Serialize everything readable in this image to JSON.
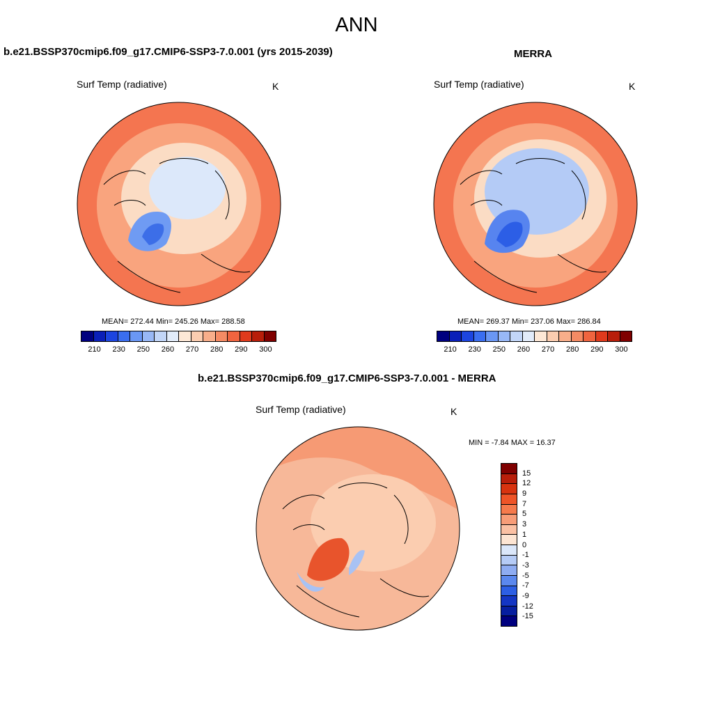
{
  "title": "ANN",
  "panels": {
    "model": {
      "title": "b.e21.BSSP370cmip6.f09_g17.CMIP6-SSP3-7.0.001 (yrs 2015-2039)",
      "variable": "Surf Temp (radiative)",
      "units": "K",
      "stats": "MEAN= 272.44  Min= 245.26  Max= 288.58"
    },
    "obs": {
      "title": "MERRA",
      "variable": "Surf Temp (radiative)",
      "units": "K",
      "stats": "MEAN= 269.37  Min= 237.06  Max= 286.84"
    },
    "diff": {
      "title": "b.e21.BSSP370cmip6.f09_g17.CMIP6-SSP3-7.0.001 - MERRA",
      "variable": "Surf Temp (radiative)",
      "units": "K",
      "stats": "MIN =  -7.84 MAX =  16.37"
    }
  },
  "colorbars": {
    "abs": {
      "labels": [
        "210",
        "230",
        "250",
        "260",
        "270",
        "280",
        "290",
        "300"
      ],
      "colors": [
        "#00007f",
        "#0a1fb8",
        "#1c45e0",
        "#3a6ef0",
        "#6a97f4",
        "#98b8f6",
        "#c2d6f8",
        "#e2ecfa",
        "#fde8d6",
        "#fbcdb0",
        "#f8ae8a",
        "#f58b64",
        "#f0643f",
        "#e03a1c",
        "#b81e0a",
        "#7f0000"
      ]
    },
    "diff": {
      "labels": [
        "15",
        "12",
        "9",
        "7",
        "5",
        "3",
        "1",
        "0",
        "-1",
        "-3",
        "-5",
        "-7",
        "-9",
        "-12",
        "-15"
      ],
      "colors": [
        "#7f0000",
        "#b81e0a",
        "#d8330f",
        "#ef5427",
        "#f67a4c",
        "#f89d78",
        "#fbc1a4",
        "#fde5d3",
        "#dbe7fa",
        "#b5cbf6",
        "#8eacf2",
        "#5b88ee",
        "#2d5fe4",
        "#1436c4",
        "#071fa0",
        "#00007f"
      ]
    }
  },
  "map_fills": {
    "model": {
      "outer": "#f47550",
      "mid": "#f9a47e",
      "inner": "#fbdcc4",
      "pole": "#dce8fa",
      "ice": "#6f9bf3",
      "ice_core": "#3c6ee8"
    },
    "obs": {
      "outer": "#f47550",
      "mid": "#f9a47e",
      "inner": "#fbdcc4",
      "pole": "#b4cbf6",
      "ice": "#5784ef",
      "ice_core": "#2c5ee6"
    },
    "diff": {
      "outer": "#f7b899",
      "mid": "#f69a74",
      "inner": "#fbcdb0",
      "pole": "#f7a27f",
      "ice": "#e8542c",
      "ice_core": "#a8c2f4"
    }
  }
}
